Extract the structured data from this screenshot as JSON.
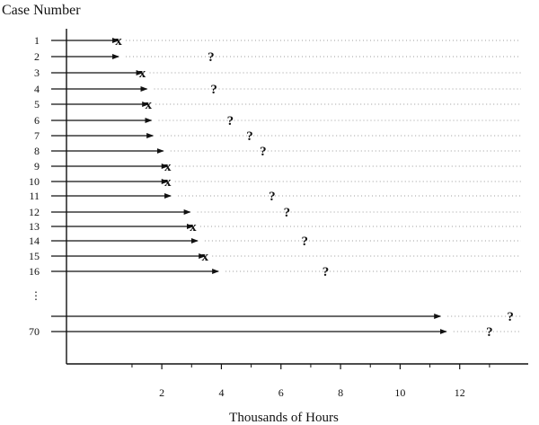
{
  "chart_data": {
    "type": "scatter",
    "title": "Case Number",
    "xlabel": "Thousands of Hours",
    "ylabel": "",
    "xlim": [
      -1.2,
      14.3
    ],
    "xticks": [
      2,
      4,
      6,
      8,
      10,
      12
    ],
    "grid": false,
    "legend": "none",
    "vertical_ellipsis": "⋮",
    "marker_labels": {
      "failure": "x",
      "censored": "?"
    },
    "cases": [
      {
        "case": "1",
        "run_to": 0.55,
        "marker": "failure",
        "marker_at": 0.55
      },
      {
        "case": "2",
        "run_to": 0.55,
        "marker": "censored",
        "marker_at": 3.65
      },
      {
        "case": "3",
        "run_to": 1.35,
        "marker": "failure",
        "marker_at": 1.35
      },
      {
        "case": "4",
        "run_to": 1.5,
        "marker": "censored",
        "marker_at": 3.75
      },
      {
        "case": "5",
        "run_to": 1.55,
        "marker": "failure",
        "marker_at": 1.55
      },
      {
        "case": "6",
        "run_to": 1.65,
        "marker": "censored",
        "marker_at": 4.3
      },
      {
        "case": "7",
        "run_to": 1.7,
        "marker": "censored",
        "marker_at": 4.95
      },
      {
        "case": "8",
        "run_to": 2.05,
        "marker": "censored",
        "marker_at": 5.4
      },
      {
        "case": "9",
        "run_to": 2.2,
        "marker": "failure",
        "marker_at": 2.2
      },
      {
        "case": "10",
        "run_to": 2.2,
        "marker": "failure",
        "marker_at": 2.2
      },
      {
        "case": "11",
        "run_to": 2.3,
        "marker": "censored",
        "marker_at": 5.7
      },
      {
        "case": "12",
        "run_to": 2.95,
        "marker": "censored",
        "marker_at": 6.2
      },
      {
        "case": "13",
        "run_to": 3.05,
        "marker": "failure",
        "marker_at": 3.05
      },
      {
        "case": "14",
        "run_to": 3.2,
        "marker": "censored",
        "marker_at": 6.8
      },
      {
        "case": "15",
        "run_to": 3.45,
        "marker": "failure",
        "marker_at": 3.45
      },
      {
        "case": "16",
        "run_to": 3.9,
        "marker": "censored",
        "marker_at": 7.5
      },
      {
        "case": "",
        "run_to": 11.35,
        "marker": "censored",
        "marker_at": 13.7
      },
      {
        "case": "70",
        "run_to": 11.55,
        "marker": "censored",
        "marker_at": 13.0
      }
    ]
  }
}
